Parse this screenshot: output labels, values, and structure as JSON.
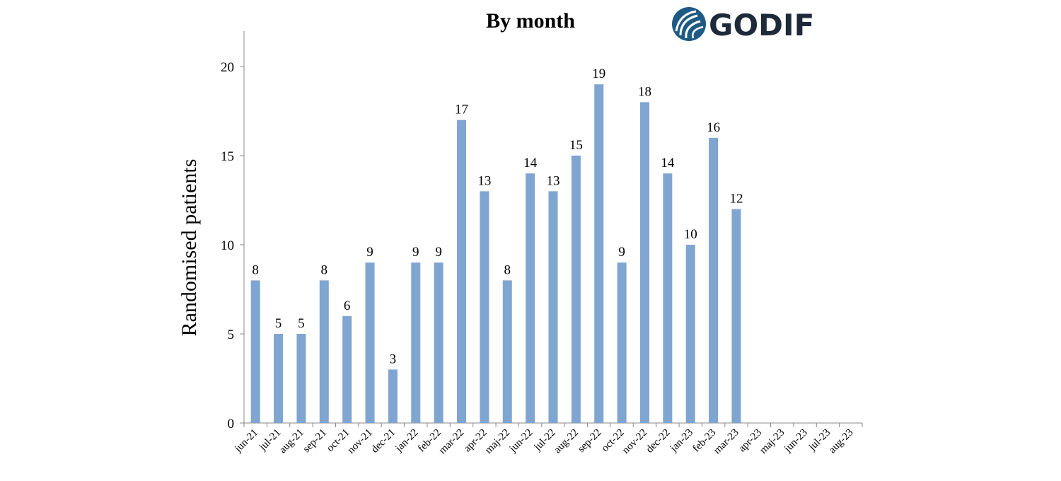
{
  "chart_data": {
    "type": "bar",
    "title": "By month",
    "ylabel": "Randomised patients",
    "xlabel": "",
    "ylim": [
      0,
      22
    ],
    "yticks": [
      0,
      5,
      10,
      15,
      20
    ],
    "grid": false,
    "legend": "none",
    "bar_color": "#7fa5d0",
    "categories": [
      "jun-21",
      "jul-21",
      "aug-21",
      "sep-21",
      "oct-21",
      "nov-21",
      "dec-21",
      "jan-22",
      "feb-22",
      "mar-22",
      "apr-22",
      "maj-22",
      "jun-22",
      "jul-22",
      "aug-22",
      "sep-22",
      "oct-22",
      "nov-22",
      "dec-22",
      "jan-23",
      "feb-23",
      "mar-23",
      "apr-23",
      "maj-23",
      "jun-23",
      "jul-23",
      "aug-23"
    ],
    "values": [
      8,
      5,
      5,
      8,
      6,
      9,
      3,
      9,
      9,
      17,
      13,
      8,
      14,
      13,
      15,
      19,
      9,
      18,
      14,
      10,
      16,
      12,
      null,
      null,
      null,
      null,
      null
    ]
  },
  "logo": {
    "text": "GODIF",
    "icon": "wave-globe-icon",
    "color": "#1e5a84"
  }
}
